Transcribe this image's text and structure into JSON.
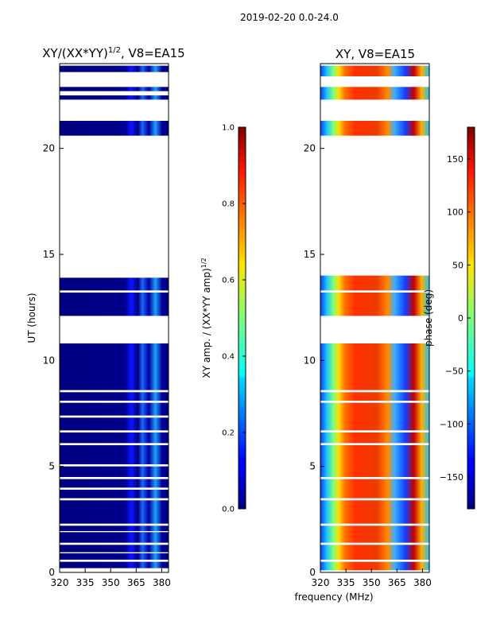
{
  "suptitle": "2019-02-20 0.0-24.0",
  "shared_xlabel": "frequency (MHz)",
  "chart_data": [
    {
      "type": "heatmap",
      "title": "XY/(XX*YY)",
      "title_exponent": "1/2",
      "title_suffix": ", V8=EA15",
      "xlabel": "",
      "ylabel": "UT (hours)",
      "xlim": [
        320,
        384
      ],
      "ylim": [
        0,
        24
      ],
      "xticks": [
        320,
        335,
        350,
        365,
        380
      ],
      "yticks": [
        0,
        5,
        10,
        15,
        20
      ],
      "data_bands_hours": [
        [
          0.2,
          0.5
        ],
        [
          0.6,
          0.9
        ],
        [
          0.95,
          1.3
        ],
        [
          1.4,
          1.9
        ],
        [
          1.95,
          2.2
        ],
        [
          2.3,
          3.4
        ],
        [
          3.5,
          3.9
        ],
        [
          4.0,
          4.4
        ],
        [
          4.5,
          5.0
        ],
        [
          5.1,
          6.0
        ],
        [
          6.1,
          6.6
        ],
        [
          6.7,
          7.3
        ],
        [
          7.4,
          8.0
        ],
        [
          8.1,
          8.5
        ],
        [
          8.6,
          10.8
        ],
        [
          12.1,
          13.2
        ],
        [
          13.3,
          13.9
        ],
        [
          20.6,
          21.3
        ],
        [
          22.3,
          22.5
        ],
        [
          22.7,
          22.9
        ],
        [
          23.6,
          23.9
        ]
      ],
      "colorbar": {
        "label": "XY amp. / (XX*YY amp)",
        "label_exponent": "1/2",
        "min": 0.0,
        "max": 1.0,
        "ticks": [
          "0.0",
          "0.2",
          "0.4",
          "0.6",
          "0.8",
          "1.0"
        ]
      }
    },
    {
      "type": "heatmap",
      "title": "XY, V8=EA15",
      "xlabel": "frequency (MHz)",
      "ylabel": "",
      "xlim": [
        320,
        384
      ],
      "ylim": [
        0,
        24
      ],
      "xticks": [
        320,
        335,
        350,
        365,
        380
      ],
      "yticks": [
        0,
        5,
        10,
        15,
        20
      ],
      "data_bands_hours": [
        [
          0.1,
          0.5
        ],
        [
          0.6,
          1.3
        ],
        [
          1.4,
          2.2
        ],
        [
          2.3,
          3.4
        ],
        [
          3.5,
          4.4
        ],
        [
          4.5,
          6.0
        ],
        [
          6.1,
          6.6
        ],
        [
          6.7,
          8.0
        ],
        [
          8.1,
          8.5
        ],
        [
          8.6,
          10.8
        ],
        [
          12.1,
          13.2
        ],
        [
          13.3,
          14.0
        ],
        [
          20.6,
          21.3
        ],
        [
          22.3,
          22.9
        ],
        [
          23.4,
          23.9
        ]
      ],
      "colorbar": {
        "label": "phase (deg)",
        "min": -180,
        "max": 180,
        "ticks": [
          "150",
          "100",
          "50",
          "0",
          "−50",
          "−100",
          "−150"
        ],
        "tick_values": [
          150,
          100,
          50,
          0,
          -50,
          -100,
          -150
        ]
      }
    }
  ]
}
